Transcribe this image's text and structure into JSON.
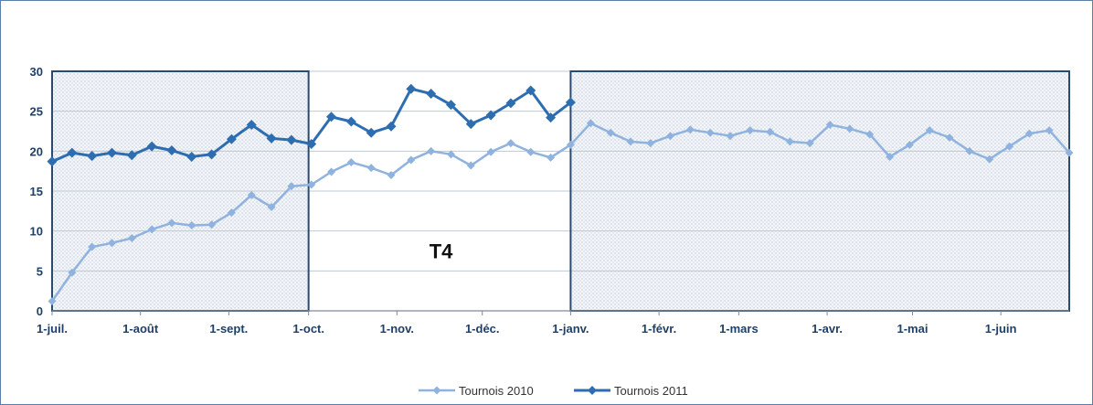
{
  "chart_data": {
    "type": "line",
    "title": "",
    "xlabel": "",
    "ylabel": "",
    "ylim": [
      0,
      30
    ],
    "y_ticks": [
      0,
      5,
      10,
      15,
      20,
      25,
      30
    ],
    "grid": "horizontal",
    "legend_position": "bottom",
    "x_tick_labels": [
      "1-juil.",
      "1-août",
      "1-sept.",
      "1-oct.",
      "1-nov.",
      "1-déc.",
      "1-janv.",
      "1-févr.",
      "1-mars",
      "1-avr.",
      "1-mai",
      "1-juin"
    ],
    "x_tick_index": [
      0,
      4.43,
      8.86,
      12.86,
      17.29,
      21.57,
      26,
      30.43,
      34.43,
      38.86,
      43.14,
      47.57
    ],
    "series": [
      {
        "name": "Tournois 2010",
        "color": "#8fb3de",
        "marker": "diamond",
        "values": [
          1.2,
          4.8,
          8.0,
          8.5,
          9.1,
          10.2,
          11.0,
          10.7,
          10.8,
          12.3,
          14.5,
          13.0,
          15.6,
          15.8,
          17.4,
          18.6,
          17.9,
          17.0,
          18.9,
          20.0,
          19.6,
          18.2,
          19.9,
          21.0,
          19.9,
          19.2,
          20.8,
          23.5,
          22.3,
          21.2,
          21.0,
          21.9,
          22.7,
          22.3,
          21.9,
          22.6,
          22.4,
          21.2,
          21.0,
          23.3,
          22.8,
          22.1,
          19.3,
          20.8,
          22.6,
          21.7,
          20.0,
          19.0,
          20.6,
          22.2,
          22.6,
          19.8
        ]
      },
      {
        "name": "Tournois 2011",
        "color": "#2e6eb0",
        "marker": "diamond",
        "values": [
          18.7,
          19.8,
          19.4,
          19.8,
          19.5,
          20.6,
          20.1,
          19.3,
          19.6,
          21.5,
          23.3,
          21.6,
          21.4,
          20.9,
          24.3,
          23.7,
          22.3,
          23.1,
          27.8,
          27.2,
          25.8,
          23.4,
          24.5,
          26.0,
          27.6,
          24.2,
          26.1
        ]
      }
    ],
    "annotations": [
      {
        "text": "T4",
        "x_index": 19.5,
        "y": 7.5
      }
    ],
    "shaded_regions": [
      {
        "x_index_start": 0,
        "x_index_end": 12.86
      },
      {
        "x_index_start": 26,
        "x_index_end": 51
      }
    ]
  }
}
